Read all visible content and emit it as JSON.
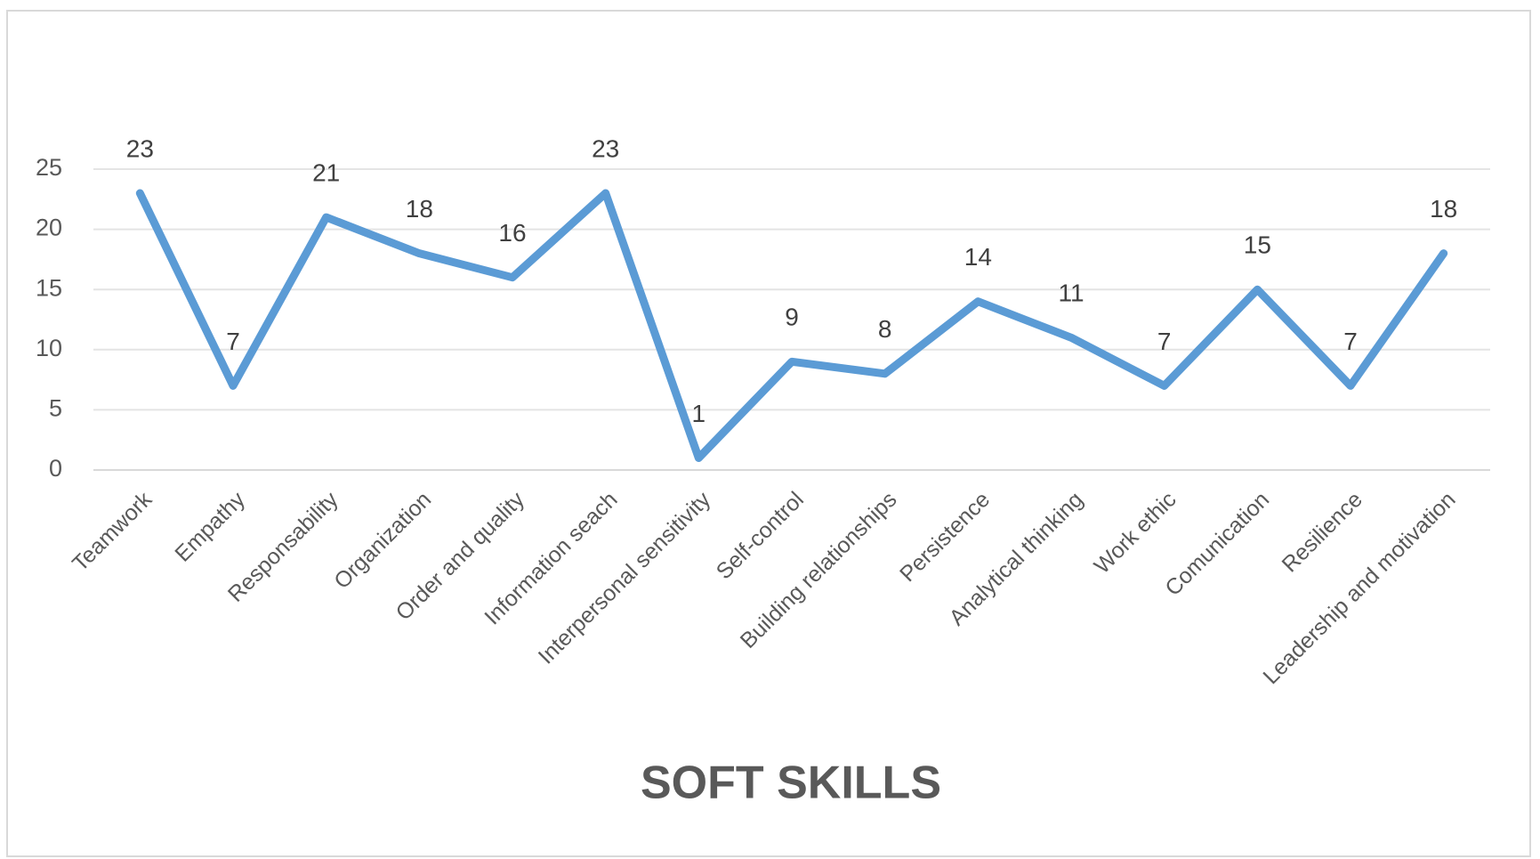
{
  "chart_data": {
    "type": "line",
    "title": "SOFT SKILLS",
    "categories": [
      "Teamwork",
      "Empathy",
      "Responsability",
      "Organization",
      "Order and quality",
      "Information seach",
      "Interpersonal sensitivity",
      "Self-control",
      "Building relationships",
      "Persistence",
      "Analytical thinking",
      "Work ethic",
      "Comunication",
      "Resilience",
      "Leadership and motivation"
    ],
    "values": [
      23,
      7,
      21,
      18,
      16,
      23,
      1,
      9,
      8,
      14,
      11,
      7,
      15,
      7,
      18
    ],
    "color": "#5b9bd5",
    "ylim": [
      0,
      25
    ],
    "yticks": [
      0,
      5,
      10,
      15,
      20,
      25
    ],
    "grid": true
  }
}
